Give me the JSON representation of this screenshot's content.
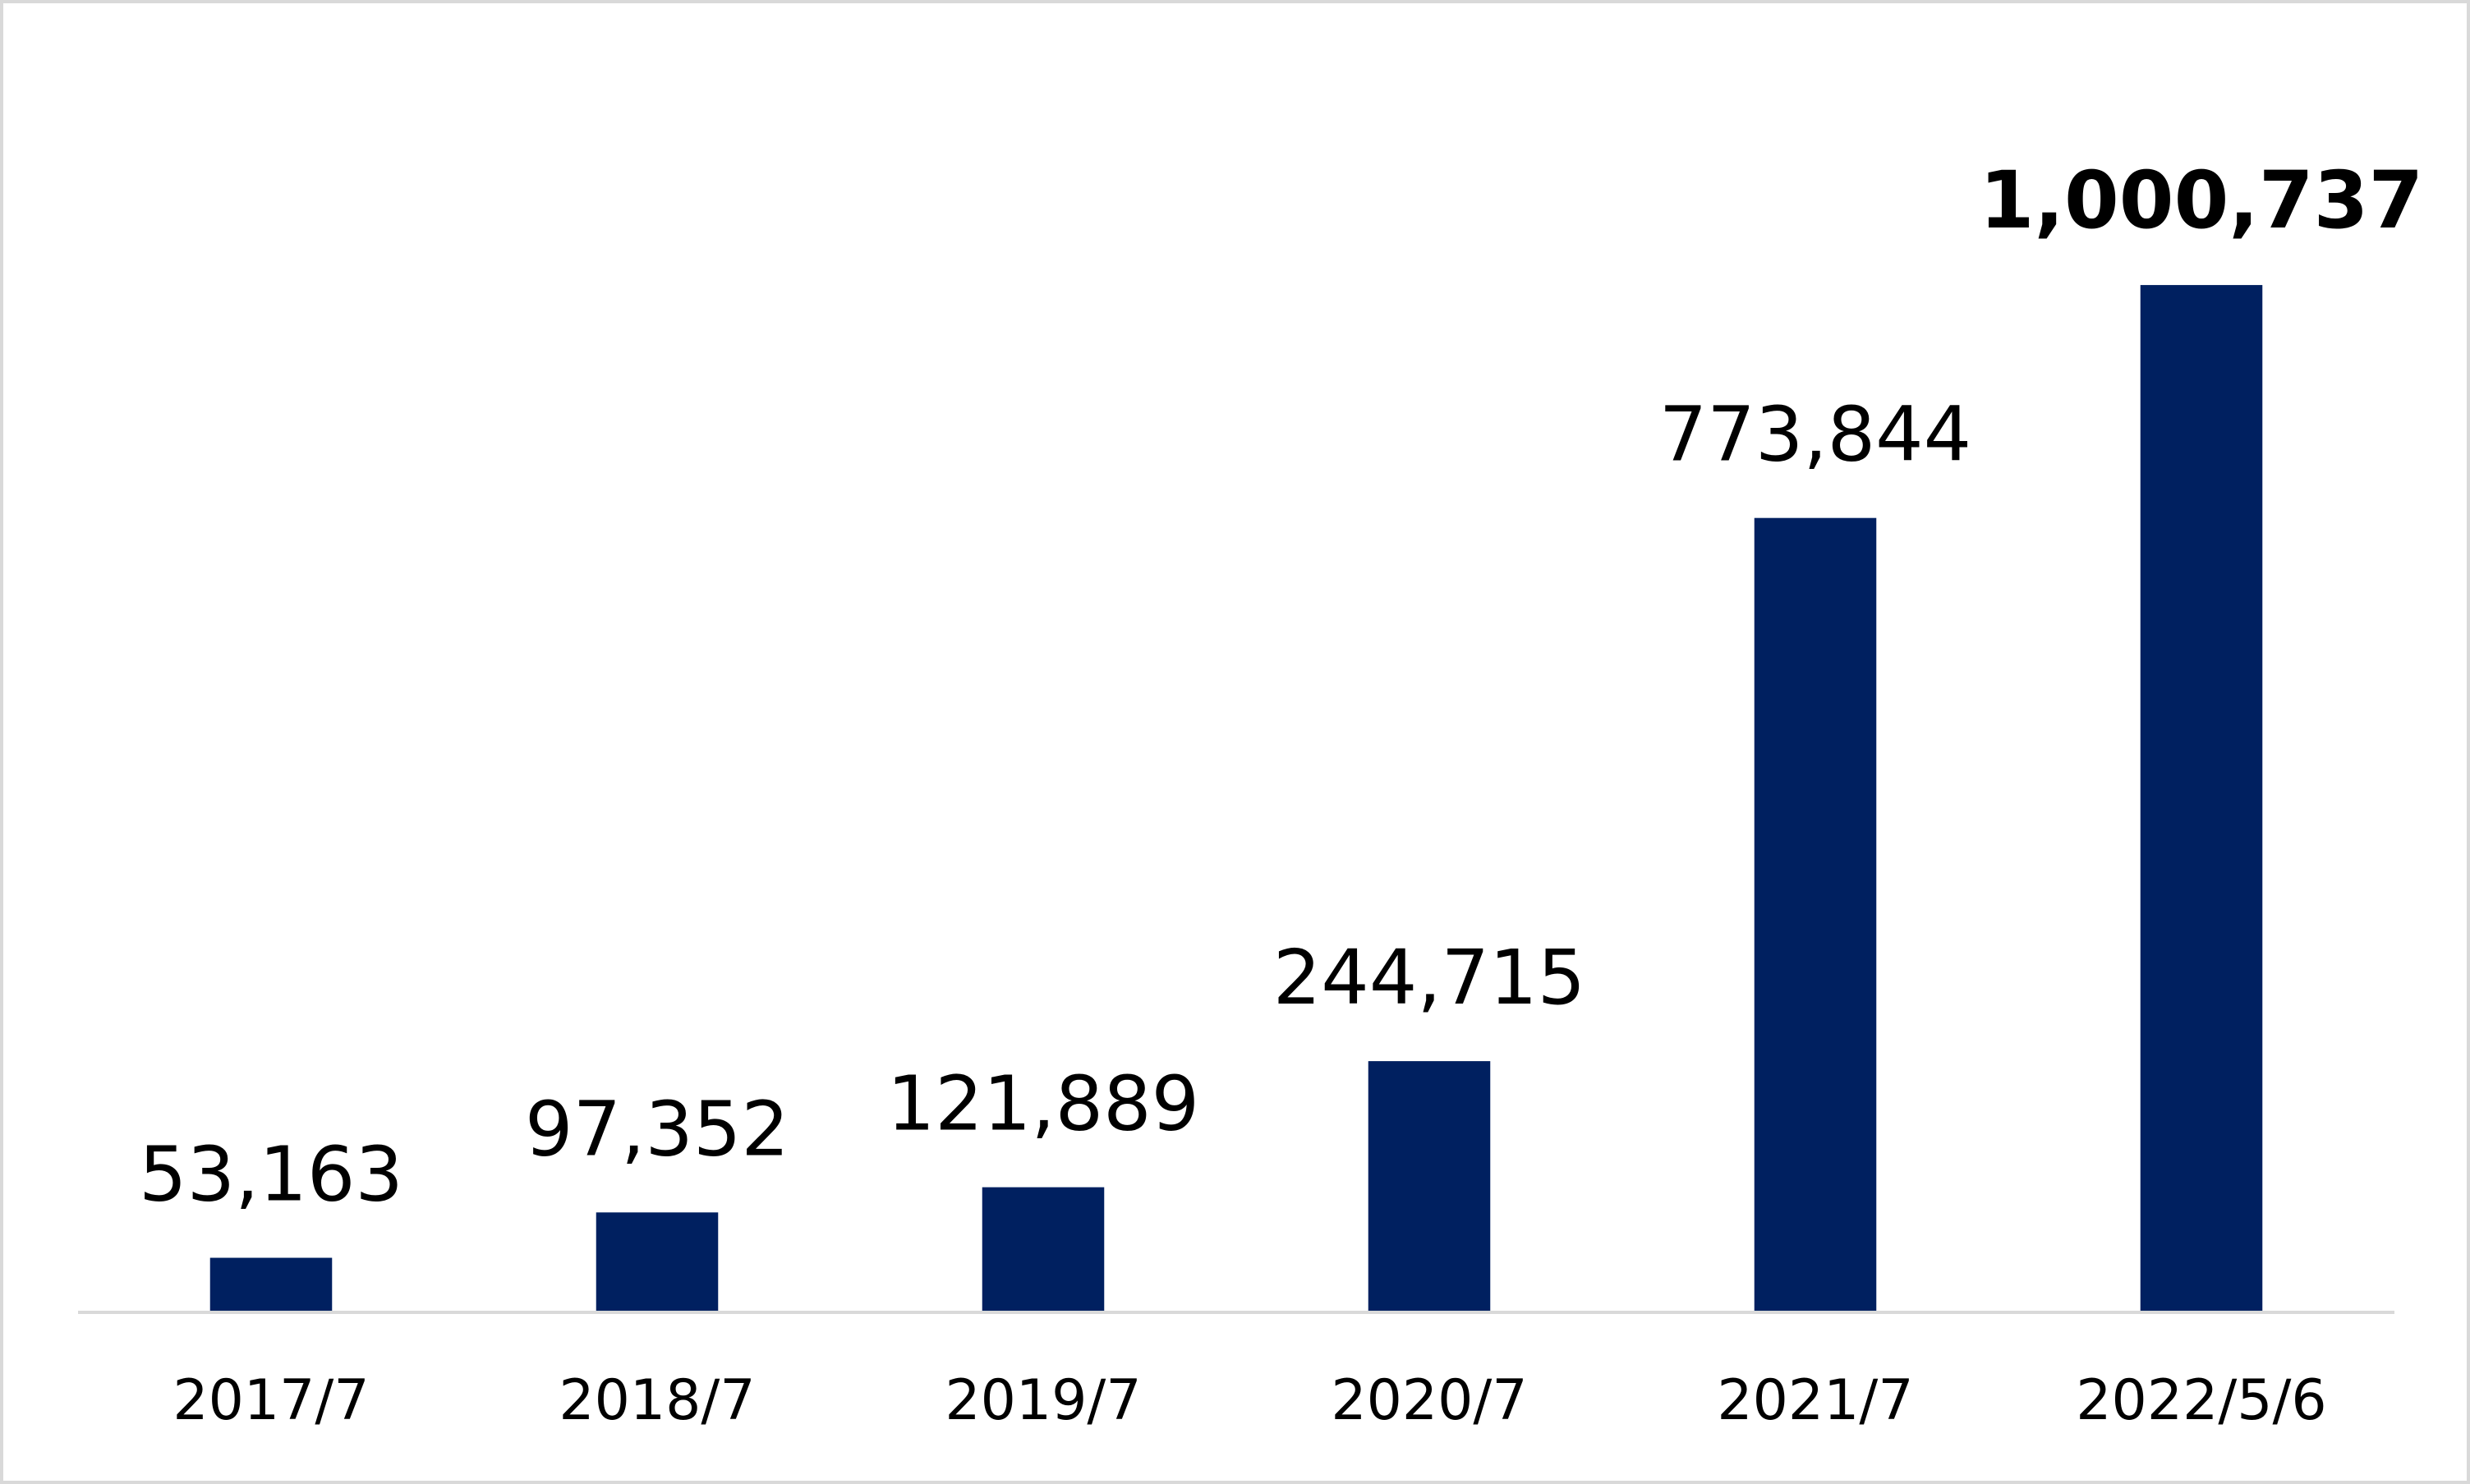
{
  "chart_data": {
    "type": "bar",
    "categories": [
      "2017/7",
      "2018/7",
      "2019/7",
      "2020/7",
      "2021/7",
      "2022/5/6"
    ],
    "values": [
      53163,
      97352,
      121889,
      244715,
      773844,
      1000737
    ],
    "value_labels": [
      "53,163",
      "97,352",
      "121,889",
      "244,715",
      "773,844",
      "1,000,737"
    ],
    "value_label_colors": [
      "#000000",
      "#000000",
      "#000000",
      "#000000",
      "#000000",
      "#c00000"
    ],
    "value_label_bold": [
      false,
      false,
      false,
      false,
      false,
      true
    ],
    "color": "#002060",
    "ylim": [
      0,
      1200000
    ]
  }
}
